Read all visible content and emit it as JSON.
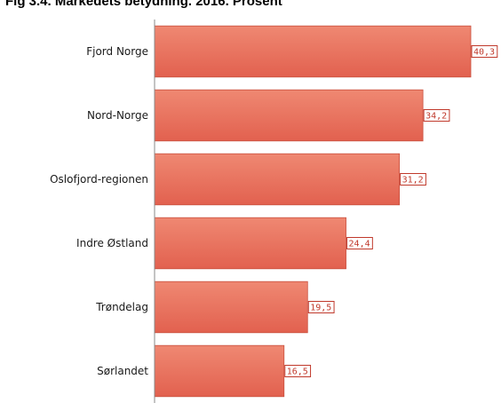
{
  "chart_data": {
    "type": "bar",
    "orientation": "horizontal",
    "title": "Fig 3.4. Markedets betydning. 2016. Prosent",
    "categories": [
      "Fjord Norge",
      "Nord-Norge",
      "Oslofjord-regionen",
      "Indre Østland",
      "Trøndelag",
      "Sørlandet"
    ],
    "values": [
      40.3,
      34.2,
      31.2,
      24.4,
      19.5,
      16.5
    ],
    "value_labels": [
      "40,3",
      "34,2",
      "31,2",
      "24,4",
      "19,5",
      "16,5"
    ],
    "xlabel": "",
    "ylabel": "",
    "xlim": [
      0,
      40.3
    ],
    "grid": false,
    "colors": {
      "bar": "#e2614f",
      "bar_light": "#ef8872",
      "label": "#c0392b"
    }
  }
}
